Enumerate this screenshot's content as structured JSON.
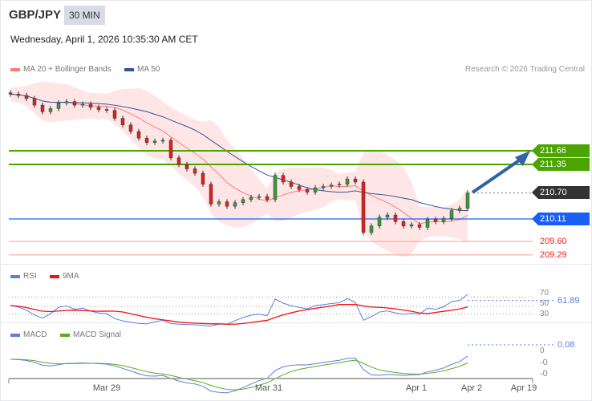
{
  "header": {
    "symbol": "GBP/JPY",
    "timeframe": "30 MIN",
    "datetime": "Wednesday, April 1, 2026 10:35:30 AM CET"
  },
  "legend": {
    "ma20": "MA 20 + Bollinger Bands",
    "ma50": "MA 50",
    "credit": "Research © 2026 Trading Central"
  },
  "colors": {
    "ma20": "#ff7a7a",
    "ma50": "#2f5597",
    "band": "#ffe0e0",
    "resistance": "#4ca400",
    "current": "#333333",
    "pivot": "#1a5ff5",
    "support": "#ff3333",
    "up": "#3c9a3c",
    "down": "#e02020",
    "arrow": "#2f62a8",
    "rsi": "#5b7fe0",
    "rsi_ma": "#ee1111",
    "macd": "#5b7fe0",
    "macd_signal": "#5aaa20"
  },
  "levels": {
    "r2": "211.66",
    "r1": "211.35",
    "current": "210.70",
    "pivot": "210.11",
    "s1": "209.60",
    "s2": "209.29"
  },
  "rsi": {
    "label": "RSI",
    "ma_label": "9MA",
    "value": "61.89",
    "ticks": [
      "70",
      "50",
      "30"
    ]
  },
  "macd": {
    "label": "MACD",
    "signal_label": "MACD Signal",
    "value": "0.08",
    "ticks": [
      "0",
      "-0",
      "-0"
    ]
  },
  "xaxis": {
    "labels": [
      "Mar 29",
      "Mar 31",
      "Apr 1",
      "Apr 2",
      "Apr 19"
    ]
  },
  "chart_data": {
    "type": "candlestick",
    "price_range": [
      209.2,
      213.1
    ],
    "closes": [
      212.95,
      212.92,
      212.85,
      212.7,
      212.55,
      212.62,
      212.75,
      212.78,
      212.7,
      212.72,
      212.65,
      212.6,
      212.58,
      212.4,
      212.25,
      212.1,
      211.95,
      211.85,
      211.88,
      211.9,
      211.5,
      211.35,
      211.25,
      211.15,
      210.9,
      210.45,
      210.5,
      210.4,
      210.48,
      210.55,
      210.6,
      210.62,
      210.55,
      211.1,
      210.95,
      210.85,
      210.78,
      210.72,
      210.82,
      210.85,
      210.88,
      210.9,
      211.02,
      210.95,
      209.8,
      209.95,
      210.15,
      210.2,
      210.05,
      209.95,
      209.98,
      209.92,
      210.1,
      210.05,
      210.12,
      210.3,
      210.35,
      210.7
    ],
    "horizontal_levels": [
      211.66,
      211.35,
      210.7,
      210.11,
      209.6,
      209.29
    ],
    "forecast_target": 211.66
  }
}
